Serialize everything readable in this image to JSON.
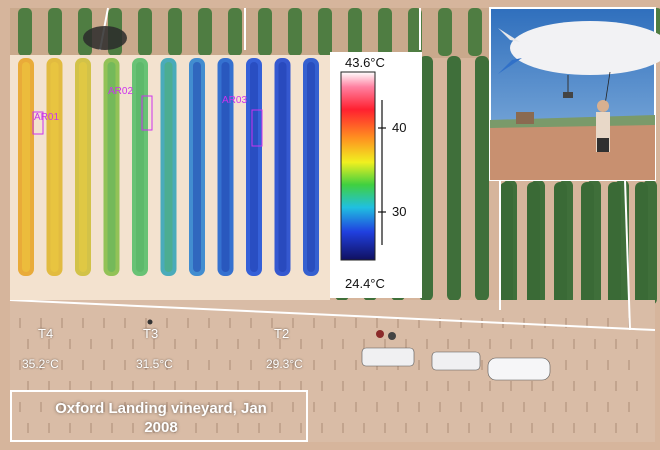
{
  "caption": {
    "line1": "Oxford Landing vineyard, Jan",
    "line2": "2008"
  },
  "treatments": [
    {
      "label": "T4",
      "temp": "35.2°C"
    },
    {
      "label": "T3",
      "temp": "31.5°C"
    },
    {
      "label": "T2",
      "temp": "29.3°C"
    }
  ],
  "thermal_scale": {
    "max_label": "43.6°C",
    "min_label": "24.4°C",
    "ticks": [
      "40",
      "30"
    ]
  },
  "row_tags": [
    "AR01",
    "AR02",
    "AR03"
  ],
  "colors": {
    "soil": "#d4b39a",
    "vine": "#3f6f3a",
    "sky": "#4a86c8",
    "thermal_hot": "#e0a030",
    "thermal_cool": "#2040c0",
    "tag_magenta": "#cc33ee"
  }
}
